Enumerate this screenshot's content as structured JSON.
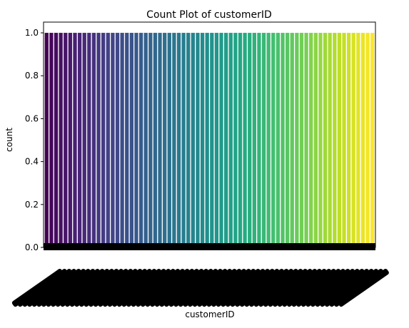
{
  "chart_data": {
    "type": "bar",
    "title": "Count Plot of customerID",
    "xlabel": "customerID",
    "ylabel": "count",
    "ylim": [
      0,
      1.05
    ],
    "yticks": [
      "0.0",
      "0.2",
      "0.4",
      "0.6",
      "0.8",
      "1.0"
    ],
    "ytick_values": [
      0,
      0.2,
      0.4,
      0.6,
      0.8,
      1.0
    ],
    "bar_count": 70,
    "bar_value": 1.0,
    "colormap": "viridis",
    "palette_start": "#440154",
    "palette_end": "#fde725",
    "x_tick_labels": "overlapping, illegible (rotated 45°)",
    "grid": false,
    "legend": "none"
  }
}
